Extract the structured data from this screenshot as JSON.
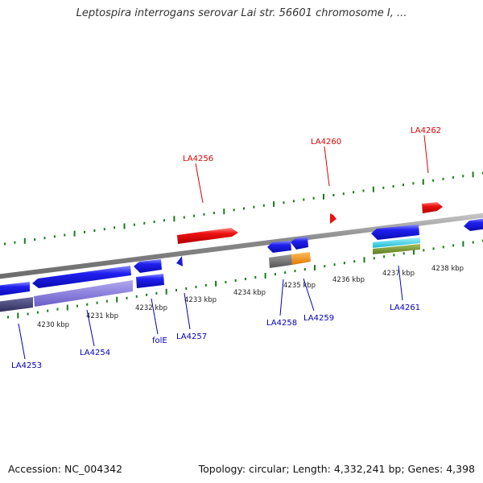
{
  "title": "Leptospira interrogans serovar Lai str. 56601 chromosome I, ...",
  "footer": {
    "accession": "Accession: NC_004342",
    "summary": "Topology: circular; Length: 4,332,241 bp; Genes: 4,398"
  },
  "colors": {
    "forward_label": "#dd0000",
    "reverse_label": "#0000bb",
    "backbone": "#808080",
    "tick": "#1a7a1a",
    "forward_gene": "#ee1111",
    "reverse_gene": "#1a1adc"
  },
  "scale_labels": [
    "4230 kbp",
    "4231 kbp",
    "4232 kbp",
    "4233 kbp",
    "4234 kbp",
    "4235 kbp",
    "4236 kbp",
    "4237 kbp",
    "4238 kbp"
  ],
  "forward_genes": [
    "LA4256",
    "LA4260",
    "LA4262"
  ],
  "reverse_genes": [
    "LA4253",
    "LA4254",
    "folE",
    "LA4257",
    "LA4258",
    "LA4259",
    "LA4261"
  ]
}
